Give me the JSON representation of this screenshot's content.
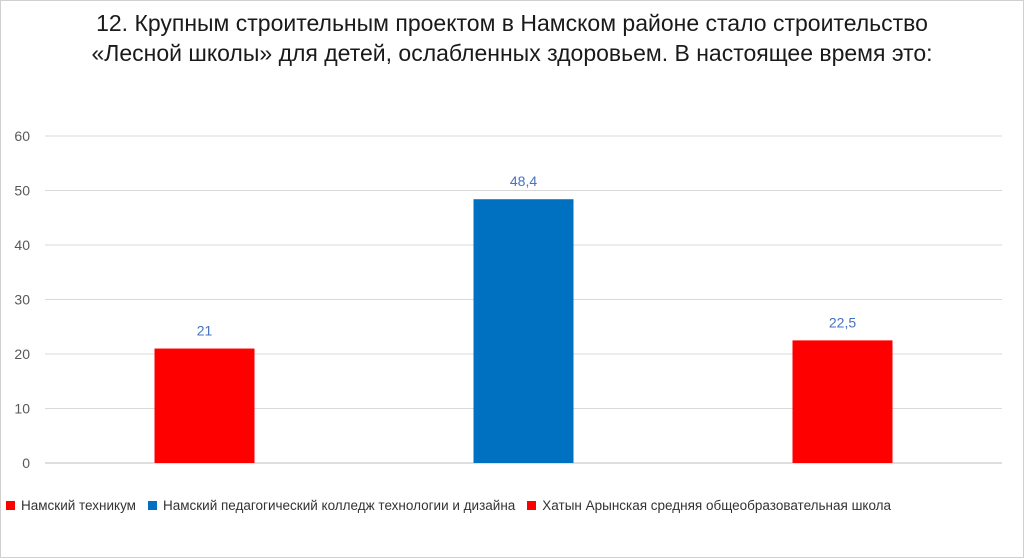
{
  "chart_data": {
    "type": "bar",
    "title": "12. Крупным строительным проектом в Намском районе стало строительство «Лесной школы» для детей, ослабленных здоровьем. В настоящее время это:",
    "categories": [
      "Намский техникум",
      "Намский педагогический колледж технологии и дизайна",
      "Хатын Арынская средняя общеобразовательная школа"
    ],
    "values": [
      21,
      48.4,
      22.5
    ],
    "value_labels": [
      "21",
      "48,4",
      "22,5"
    ],
    "colors": [
      "#ff0000",
      "#0070c0",
      "#ff0000"
    ],
    "ylim": [
      0,
      60
    ],
    "yticks": [
      0,
      10,
      20,
      30,
      40,
      50,
      60
    ],
    "xlabel": "",
    "ylabel": "",
    "grid": true,
    "legend_position": "bottom",
    "data_label_color": "#4472c4"
  }
}
